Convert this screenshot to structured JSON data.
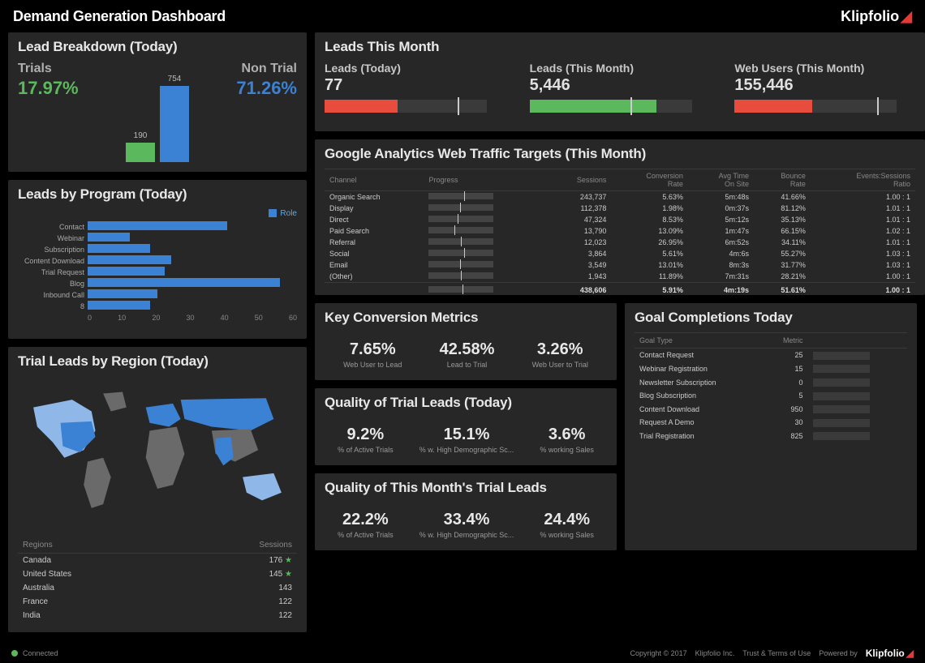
{
  "header": {
    "title": "Demand Generation Dashboard",
    "brand": "Klipfolio"
  },
  "colors": {
    "panel_bg": "#272727",
    "green": "#5cb85c",
    "blue": "#3b82d4",
    "red": "#e74c3c",
    "bar_bg": "#3a3a3a",
    "text_light": "#e8e8e8",
    "text_dim": "#999"
  },
  "lead_breakdown": {
    "title": "Lead Breakdown (Today)",
    "trials": {
      "label": "Trials",
      "value_pct": "17.97%",
      "bar_value": 190,
      "color": "#5cb85c"
    },
    "non_trial": {
      "label": "Non Trial",
      "value_pct": "71.26%",
      "bar_value": 754,
      "color": "#3b82d4"
    },
    "bar_max": 800
  },
  "leads_program": {
    "title": "Leads by Program (Today)",
    "legend": "Role",
    "x_max": 60,
    "x_ticks": [
      "0",
      "10",
      "20",
      "30",
      "40",
      "50",
      "60"
    ],
    "bar_color": "#3b82d4",
    "items": [
      {
        "label": "Contact",
        "value": 40
      },
      {
        "label": "Webinar",
        "value": 12
      },
      {
        "label": "Subscription",
        "value": 18
      },
      {
        "label": "Content Download",
        "value": 24
      },
      {
        "label": "Trial Request",
        "value": 22
      },
      {
        "label": "Blog",
        "value": 55
      },
      {
        "label": "Inbound Call",
        "value": 20
      },
      {
        "label": "8",
        "value": 18
      }
    ]
  },
  "trial_region": {
    "title": "Trial Leads by Region (Today)",
    "columns": [
      "Regions",
      "Sessions"
    ],
    "rows": [
      {
        "region": "Canada",
        "sessions": "176",
        "star": true
      },
      {
        "region": "United States",
        "sessions": "145",
        "star": true
      },
      {
        "region": "Australia",
        "sessions": "143",
        "star": false
      },
      {
        "region": "France",
        "sessions": "122",
        "star": false
      },
      {
        "region": "India",
        "sessions": "122",
        "star": false
      }
    ],
    "map_colors": {
      "highlight": "#3b82d4",
      "light": "#8fb8e8",
      "neutral": "#6a6a6a",
      "dark": "#4a4a4a"
    }
  },
  "leads_month": {
    "title": "Leads This Month",
    "items": [
      {
        "label": "Leads (Today)",
        "value": "77",
        "fill_pct": 45,
        "color": "#e74c3c",
        "mark_pct": 82
      },
      {
        "label": "Leads (This Month)",
        "value": "5,446",
        "fill_pct": 78,
        "color": "#5cb85c",
        "mark_pct": 62
      },
      {
        "label": "Web Users (This Month)",
        "value": "155,446",
        "fill_pct": 48,
        "color": "#e74c3c",
        "mark_pct": 88
      }
    ]
  },
  "ga": {
    "title": "Google Analytics Web Traffic Targets (This Month)",
    "columns": [
      "Channel",
      "Progress",
      "Sessions",
      "Conversion\nRate",
      "Avg Time\nOn Site",
      "Bounce\nRate",
      "Events:Sessions\nRatio"
    ],
    "rows": [
      {
        "channel": "Organic Search",
        "progress_pct": 42,
        "color": "#5cb85c",
        "mark": 55,
        "sessions": "243,737",
        "conv": "5.63%",
        "time": "5m:48s",
        "bounce": "41.66%",
        "ratio": "1.00 : 1"
      },
      {
        "channel": "Display",
        "progress_pct": 35,
        "color": "#5cb85c",
        "mark": 48,
        "sessions": "112,378",
        "conv": "1.98%",
        "time": "0m:37s",
        "bounce": "81.12%",
        "ratio": "1.01 : 1"
      },
      {
        "channel": "Direct",
        "progress_pct": 52,
        "color": "#5cb85c",
        "mark": 45,
        "sessions": "47,324",
        "conv": "8.53%",
        "time": "5m:12s",
        "bounce": "35.13%",
        "ratio": "1.01 : 1"
      },
      {
        "channel": "Paid Search",
        "progress_pct": 68,
        "color": "#5cb85c",
        "mark": 40,
        "sessions": "13,790",
        "conv": "13.09%",
        "time": "1m:47s",
        "bounce": "66.15%",
        "ratio": "1.02 : 1"
      },
      {
        "channel": "Referral",
        "progress_pct": 38,
        "color": "#5cb85c",
        "mark": 50,
        "sessions": "12,023",
        "conv": "26.95%",
        "time": "6m:52s",
        "bounce": "34.11%",
        "ratio": "1.01 : 1"
      },
      {
        "channel": "Social",
        "progress_pct": 30,
        "color": "#5cb85c",
        "mark": 55,
        "sessions": "3,864",
        "conv": "5.61%",
        "time": "4m:6s",
        "bounce": "55.27%",
        "ratio": "1.03 : 1"
      },
      {
        "channel": "Email",
        "progress_pct": 24,
        "color": "#e74c3c",
        "mark": 48,
        "sessions": "3,549",
        "conv": "13.01%",
        "time": "8m:3s",
        "bounce": "31.77%",
        "ratio": "1.03 : 1"
      },
      {
        "channel": "(Other)",
        "progress_pct": 20,
        "color": "#e74c3c",
        "mark": 50,
        "sessions": "1,943",
        "conv": "11.89%",
        "time": "7m:31s",
        "bounce": "28.21%",
        "ratio": "1.00 : 1"
      }
    ],
    "total": {
      "progress_pct": 40,
      "color": "#5cb85c",
      "mark": 52,
      "sessions": "438,606",
      "conv": "5.91%",
      "time": "4m:19s",
      "bounce": "51.61%",
      "ratio": "1.00 : 1"
    }
  },
  "key_metrics": {
    "title": "Key Conversion Metrics",
    "items": [
      {
        "value": "7.65%",
        "label": "Web User to Lead"
      },
      {
        "value": "42.58%",
        "label": "Lead to Trial"
      },
      {
        "value": "3.26%",
        "label": "Web User to Trial"
      }
    ]
  },
  "quality_today": {
    "title": "Quality of Trial Leads (Today)",
    "items": [
      {
        "value": "9.2%",
        "label": "% of Active Trials"
      },
      {
        "value": "15.1%",
        "label": "% w. High Demographic Sc..."
      },
      {
        "value": "3.6%",
        "label": "% working Sales"
      }
    ]
  },
  "quality_month": {
    "title": "Quality of This Month's Trial Leads",
    "items": [
      {
        "value": "22.2%",
        "label": "% of Active Trials"
      },
      {
        "value": "33.4%",
        "label": "% w. High Demographic Sc..."
      },
      {
        "value": "24.4%",
        "label": "% working Sales"
      }
    ]
  },
  "goals": {
    "title": "Goal Completions Today",
    "columns": [
      "Goal Type",
      "Metric"
    ],
    "bar_max": 1000,
    "bar_color": "#3b82d4",
    "rows": [
      {
        "type": "Contact Request",
        "metric": "25",
        "pct": 3
      },
      {
        "type": "Webinar Registration",
        "metric": "15",
        "pct": 2
      },
      {
        "type": "Newsletter Subscription",
        "metric": "0",
        "pct": 0
      },
      {
        "type": "Blog Subscription",
        "metric": "5",
        "pct": 1
      },
      {
        "type": "Content Download",
        "metric": "950",
        "pct": 80
      },
      {
        "type": "Request A Demo",
        "metric": "30",
        "pct": 4
      },
      {
        "type": "Trial Registration",
        "metric": "825",
        "pct": 70
      }
    ]
  },
  "footer": {
    "status": "Connected",
    "copyright": "Copyright © 2017",
    "company": "Klipfolio Inc.",
    "terms": "Trust & Terms of Use",
    "powered": "Powered by"
  }
}
